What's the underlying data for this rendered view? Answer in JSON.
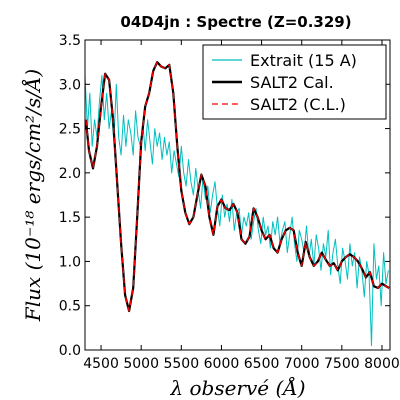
{
  "chart_data": {
    "type": "line",
    "title": "04D4jn : Spectre (Z=0.329)",
    "xlabel": "λ observé (Å)",
    "ylabel": "Flux (10⁻¹⁸ ergs/cm²/s/Å)",
    "xlim": [
      4300,
      8100
    ],
    "ylim": [
      0.0,
      3.5
    ],
    "xticks": [
      4500,
      5000,
      5500,
      6000,
      6500,
      7000,
      7500,
      8000
    ],
    "yticks": [
      0.0,
      0.5,
      1.0,
      1.5,
      2.0,
      2.5,
      3.0,
      3.5
    ],
    "ytick_labels": [
      "0.0",
      "0.5",
      "1.0",
      "1.5",
      "2.0",
      "2.5",
      "3.0",
      "3.5"
    ],
    "grid": false,
    "legend_placement": "top-right",
    "series": [
      {
        "name": "Extrait (15 A)",
        "color": "#00bfbf",
        "style": "solid",
        "x": [
          4300,
          4330,
          4360,
          4390,
          4420,
          4450,
          4480,
          4510,
          4540,
          4570,
          4600,
          4630,
          4660,
          4690,
          4720,
          4750,
          4780,
          4810,
          4840,
          4870,
          4900,
          4930,
          4960,
          4990,
          5020,
          5050,
          5080,
          5110,
          5140,
          5170,
          5200,
          5230,
          5260,
          5290,
          5320,
          5350,
          5380,
          5410,
          5440,
          5470,
          5500,
          5530,
          5560,
          5590,
          5620,
          5650,
          5680,
          5710,
          5740,
          5770,
          5800,
          5830,
          5860,
          5890,
          5920,
          5950,
          5980,
          6010,
          6040,
          6070,
          6100,
          6130,
          6160,
          6190,
          6220,
          6250,
          6280,
          6310,
          6340,
          6370,
          6400,
          6430,
          6460,
          6490,
          6520,
          6550,
          6580,
          6610,
          6640,
          6670,
          6700,
          6730,
          6760,
          6790,
          6820,
          6850,
          6880,
          6910,
          6940,
          6970,
          7000,
          7030,
          7060,
          7090,
          7120,
          7150,
          7180,
          7210,
          7240,
          7270,
          7300,
          7330,
          7360,
          7390,
          7420,
          7450,
          7480,
          7510,
          7540,
          7570,
          7600,
          7630,
          7660,
          7690,
          7720,
          7750,
          7780,
          7810,
          7840,
          7870,
          7900,
          7930,
          7960,
          7990,
          8020,
          8050,
          8080
        ],
        "y": [
          3.1,
          2.5,
          2.9,
          2.3,
          2.6,
          2.4,
          2.8,
          3.1,
          2.6,
          2.9,
          2.5,
          2.7,
          2.35,
          3.0,
          2.4,
          2.2,
          2.65,
          2.3,
          2.6,
          2.45,
          2.2,
          2.7,
          2.4,
          2.3,
          2.55,
          2.25,
          2.6,
          2.35,
          2.1,
          2.5,
          2.3,
          2.45,
          2.15,
          2.4,
          2.2,
          2.35,
          2.0,
          2.25,
          2.1,
          1.95,
          2.3,
          2.0,
          1.85,
          2.15,
          1.9,
          1.75,
          2.05,
          1.8,
          1.6,
          1.95,
          1.7,
          1.85,
          1.55,
          1.75,
          1.9,
          1.6,
          1.4,
          1.75,
          1.5,
          1.65,
          1.45,
          1.7,
          1.35,
          1.55,
          1.6,
          1.3,
          1.5,
          1.4,
          1.55,
          1.25,
          1.45,
          1.6,
          1.35,
          1.2,
          1.5,
          1.3,
          1.4,
          1.15,
          1.45,
          1.3,
          1.5,
          1.2,
          1.35,
          1.45,
          1.1,
          1.3,
          1.5,
          1.2,
          1.0,
          1.35,
          1.25,
          1.1,
          1.4,
          1.05,
          1.25,
          0.95,
          1.3,
          1.15,
          0.9,
          1.2,
          1.05,
          1.35,
          0.85,
          1.1,
          1.25,
          0.95,
          0.75,
          1.15,
          1.0,
          0.8,
          1.2,
          0.95,
          1.1,
          0.7,
          1.05,
          0.9,
          0.6,
          1.0,
          0.85,
          0.05,
          1.2,
          0.8,
          0.95,
          0.5,
          1.1,
          0.75,
          0.9
        ]
      },
      {
        "name": "SALT2 Cal.",
        "color": "#000000",
        "style": "solid",
        "x": [
          4310,
          4350,
          4400,
          4450,
          4500,
          4550,
          4600,
          4650,
          4700,
          4750,
          4800,
          4850,
          4900,
          4950,
          5000,
          5050,
          5100,
          5150,
          5200,
          5250,
          5300,
          5350,
          5400,
          5450,
          5500,
          5550,
          5600,
          5650,
          5700,
          5750,
          5800,
          5850,
          5900,
          5950,
          6000,
          6050,
          6100,
          6150,
          6200,
          6250,
          6300,
          6350,
          6400,
          6450,
          6500,
          6550,
          6600,
          6650,
          6700,
          6750,
          6800,
          6850,
          6900,
          6950,
          7000,
          7050,
          7100,
          7150,
          7200,
          7250,
          7300,
          7350,
          7400,
          7450,
          7500,
          7550,
          7600,
          7650,
          7700,
          7750,
          7800,
          7850,
          7900,
          7950,
          8000,
          8050,
          8090
        ],
        "y": [
          2.6,
          2.25,
          2.05,
          2.3,
          2.75,
          3.12,
          3.05,
          2.6,
          1.9,
          1.2,
          0.62,
          0.44,
          0.7,
          1.5,
          2.35,
          2.75,
          2.9,
          3.15,
          3.25,
          3.2,
          3.18,
          3.22,
          2.9,
          2.3,
          1.8,
          1.55,
          1.42,
          1.5,
          1.75,
          1.98,
          1.85,
          1.5,
          1.3,
          1.62,
          1.7,
          1.6,
          1.58,
          1.65,
          1.55,
          1.25,
          1.2,
          1.28,
          1.6,
          1.5,
          1.35,
          1.25,
          1.3,
          1.15,
          1.1,
          1.25,
          1.35,
          1.38,
          1.35,
          1.1,
          0.95,
          1.22,
          1.05,
          0.95,
          1.0,
          1.1,
          1.02,
          0.95,
          0.98,
          0.9,
          1.0,
          1.05,
          1.08,
          1.05,
          1.0,
          0.92,
          0.82,
          0.88,
          0.72,
          0.7,
          0.75,
          0.72,
          0.7
        ]
      },
      {
        "name": "SALT2 (C.L.)",
        "color": "#ff0000",
        "style": "dashed",
        "x": [
          4310,
          4350,
          4400,
          4450,
          4500,
          4550,
          4600,
          4650,
          4700,
          4750,
          4800,
          4850,
          4900,
          4950,
          5000,
          5050,
          5100,
          5150,
          5200,
          5250,
          5300,
          5350,
          5400,
          5450,
          5500,
          5550,
          5600,
          5650,
          5700,
          5750,
          5800,
          5850,
          5900,
          5950,
          6000,
          6050,
          6100,
          6150,
          6200,
          6250,
          6300,
          6350,
          6400,
          6450,
          6500,
          6550,
          6600,
          6650,
          6700,
          6750,
          6800,
          6850,
          6900,
          6950,
          7000,
          7050,
          7100,
          7150,
          7200,
          7250,
          7300,
          7350,
          7400,
          7450,
          7500,
          7550,
          7600,
          7650,
          7700,
          7750,
          7800,
          7850,
          7900,
          7950,
          8000,
          8050,
          8090
        ],
        "y": [
          2.6,
          2.25,
          2.05,
          2.3,
          2.75,
          3.12,
          3.05,
          2.6,
          1.9,
          1.2,
          0.62,
          0.44,
          0.7,
          1.5,
          2.35,
          2.75,
          2.9,
          3.15,
          3.25,
          3.2,
          3.18,
          3.22,
          2.9,
          2.3,
          1.8,
          1.55,
          1.42,
          1.5,
          1.75,
          1.98,
          1.85,
          1.5,
          1.3,
          1.62,
          1.7,
          1.6,
          1.58,
          1.65,
          1.55,
          1.25,
          1.2,
          1.28,
          1.6,
          1.5,
          1.35,
          1.25,
          1.3,
          1.15,
          1.1,
          1.25,
          1.35,
          1.38,
          1.35,
          1.1,
          0.95,
          1.22,
          1.05,
          0.95,
          1.0,
          1.1,
          1.02,
          0.95,
          0.98,
          0.9,
          1.0,
          1.05,
          1.08,
          1.05,
          1.0,
          0.92,
          0.82,
          0.88,
          0.72,
          0.7,
          0.75,
          0.72,
          0.7
        ]
      }
    ]
  }
}
